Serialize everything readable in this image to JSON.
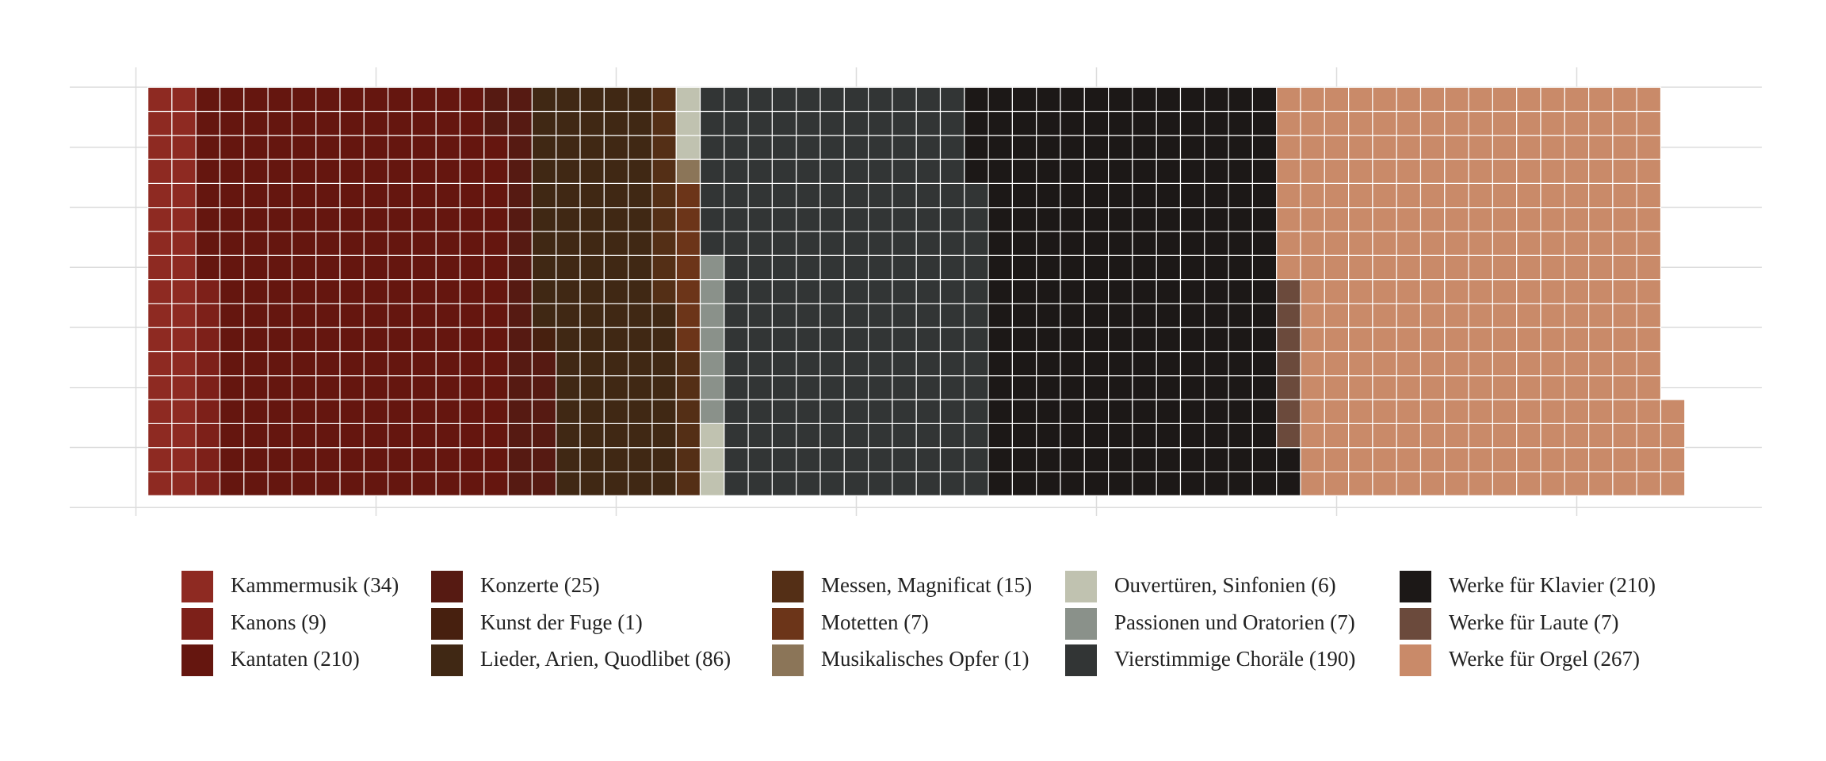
{
  "chart_data": {
    "type": "waffle",
    "series": [
      {
        "name": "Kammermusik (34)",
        "color": "#8e2a22",
        "value": 34
      },
      {
        "name": "Kanons (9)",
        "color": "#7d2019",
        "value": 9
      },
      {
        "name": "Kantaten (210)",
        "color": "#65160f",
        "value": 210
      },
      {
        "name": "Konzerte (25)",
        "color": "#561a12",
        "value": 25
      },
      {
        "name": "Kunst der Fuge (1)",
        "color": "#47200f",
        "value": 1
      },
      {
        "name": "Lieder, Arien, Quodlibet (86)",
        "color": "#402814",
        "value": 86
      },
      {
        "name": "Messen, Magnificat (15)",
        "color": "#542f16",
        "value": 15
      },
      {
        "name": "Motetten (7)",
        "color": "#6c3519",
        "value": 7
      },
      {
        "name": "Musikalisches Opfer (1)",
        "color": "#8b7558",
        "value": 1
      },
      {
        "name": "Ouvertüren, Sinfonien (6)",
        "color": "#c0c2b0",
        "value": 6
      },
      {
        "name": "Passionen und Oratorien (7)",
        "color": "#8a918a",
        "value": 7
      },
      {
        "name": "Vierstimmige Choräle (190)",
        "color": "#323535",
        "value": 190
      },
      {
        "name": "Werke für Klavier (210)",
        "color": "#1c1817",
        "value": 210
      },
      {
        "name": "Werke für Laute (7)",
        "color": "#6b4a3c",
        "value": 7
      },
      {
        "name": "Werke für Orgel (267)",
        "color": "#c98a69",
        "value": 267
      }
    ]
  }
}
